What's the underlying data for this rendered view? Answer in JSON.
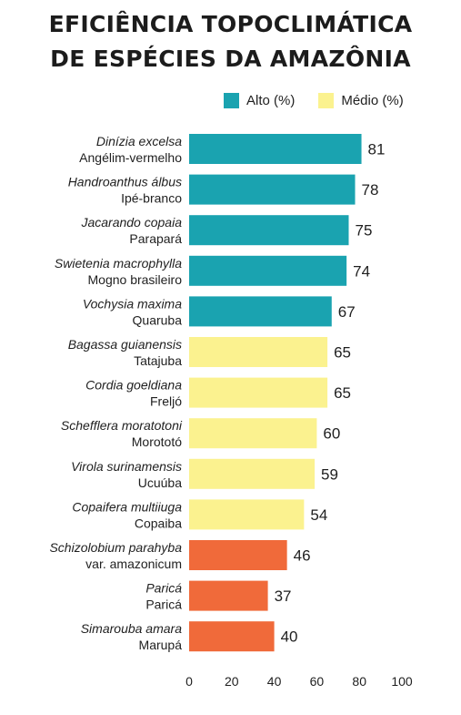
{
  "chart_data": {
    "type": "bar",
    "orientation": "horizontal",
    "title_lines": [
      "EFICIÊNCIA TOPOCLIMÁTICA",
      "DE ESPÉCIES DA AMAZÔNIA"
    ],
    "legend": [
      {
        "label": "Alto (%)",
        "color": "#1aa3b0"
      },
      {
        "label": "Médio (%)",
        "color": "#fbf28f"
      }
    ],
    "bars": [
      {
        "scientific": "Dinízia excelsa",
        "common": "Angélim-vermelho",
        "value": 81,
        "color": "#1aa3b0"
      },
      {
        "scientific": "Handroanthus álbus",
        "common": "Ipé-branco",
        "value": 78,
        "color": "#1aa3b0"
      },
      {
        "scientific": "Jacarando copaia",
        "common": "Parapará",
        "value": 75,
        "color": "#1aa3b0"
      },
      {
        "scientific": "Swietenia macrophylla",
        "common": "Mogno brasileiro",
        "value": 74,
        "color": "#1aa3b0"
      },
      {
        "scientific": "Vochysia maxima",
        "common": "Quaruba",
        "value": 67,
        "color": "#1aa3b0"
      },
      {
        "scientific": "Bagassa guianensis",
        "common": "Tatajuba",
        "value": 65,
        "color": "#fbf28f"
      },
      {
        "scientific": "Cordia goeldiana",
        "common": "Freljó",
        "value": 65,
        "color": "#fbf28f"
      },
      {
        "scientific": "Schefflera moratotoni",
        "common": "Morototó",
        "value": 60,
        "color": "#fbf28f"
      },
      {
        "scientific": "Virola surinamensis",
        "common": "Ucuúba",
        "value": 59,
        "color": "#fbf28f"
      },
      {
        "scientific": "Copaifera multiiuga",
        "common": "Copaiba",
        "value": 54,
        "color": "#fbf28f"
      },
      {
        "scientific": "Schizolobium parahyba",
        "common": "var. amazonicum",
        "value": 46,
        "color": "#f06a3a"
      },
      {
        "scientific": "Paricá",
        "common": "Paricá",
        "value": 37,
        "color": "#f06a3a"
      },
      {
        "scientific": "Simarouba amara",
        "common": "Marupá",
        "value": 40,
        "color": "#f06a3a"
      }
    ],
    "xticks": [
      "0",
      "20",
      "40",
      "60",
      "80",
      "100"
    ],
    "xlim": [
      0,
      100
    ],
    "grid": false
  }
}
